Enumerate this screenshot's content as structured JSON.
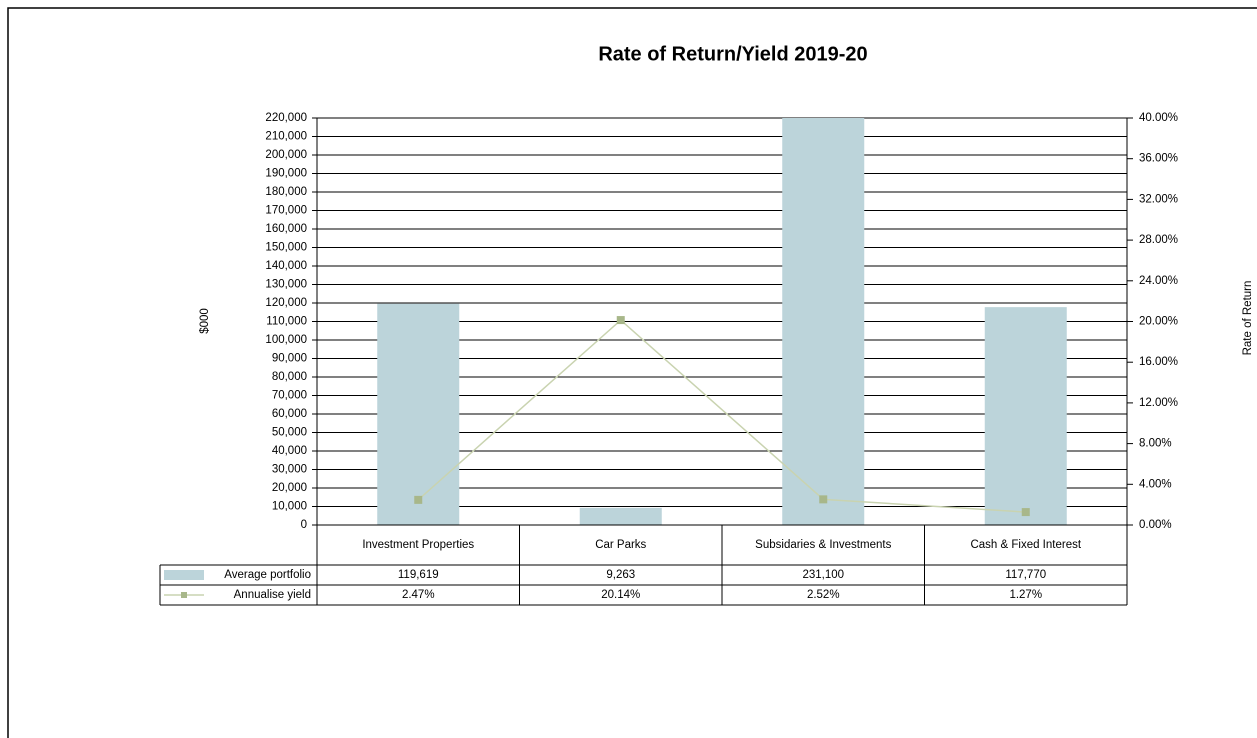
{
  "chart_data": {
    "type": "bar",
    "title": "Rate of Return/Yield 2019-20",
    "y_label": "$000",
    "y2_label": "Rate of Return",
    "categories": [
      "Investment Properties",
      "Car Parks",
      "Subsidaries & Investments",
      "Cash & Fixed Interest"
    ],
    "series": [
      {
        "name": "Average portfolio",
        "type": "bar",
        "color": "#bcd4da",
        "values": [
          119619,
          9263,
          231100,
          117770
        ],
        "value_labels": [
          "119,619",
          "9,263",
          "231,100",
          "117,770"
        ]
      },
      {
        "name": "Annualise yield",
        "type": "line",
        "axis": "y2",
        "color": "#c9d3b0",
        "marker_color": "#a8b78a",
        "values": [
          2.47,
          20.14,
          2.52,
          1.27
        ],
        "value_labels": [
          "2.47%",
          "20.14%",
          "2.52%",
          "1.27%"
        ]
      }
    ],
    "ylim": [
      0,
      220000
    ],
    "yticks": [
      0,
      {
        "value": 10000,
        "label": "10,000"
      },
      {
        "value": 20000,
        "label": "20,000"
      },
      {
        "value": 30000,
        "label": "30,000"
      },
      {
        "value": 40000,
        "label": "40,000"
      },
      {
        "value": 50000,
        "label": "50,000"
      },
      {
        "value": 60000,
        "label": "60,000"
      },
      {
        "value": 70000,
        "label": "70,000"
      },
      {
        "value": 80000,
        "label": "80,000"
      },
      {
        "value": 90000,
        "label": "90,000"
      },
      {
        "value": 100000,
        "label": "100,000"
      },
      {
        "value": 110000,
        "label": "110,000"
      },
      {
        "value": 120000,
        "label": "120,000"
      },
      {
        "value": 130000,
        "label": "130,000"
      },
      {
        "value": 140000,
        "label": "140,000"
      },
      {
        "value": 150000,
        "label": "150,000"
      },
      {
        "value": 160000,
        "label": "160,000"
      },
      {
        "value": 170000,
        "label": "170,000"
      },
      {
        "value": 180000,
        "label": "180,000"
      },
      {
        "value": 190000,
        "label": "190,000"
      },
      {
        "value": 200000,
        "label": "200,000"
      },
      {
        "value": 210000,
        "label": "210,000"
      },
      {
        "value": 220000,
        "label": "220,000"
      }
    ],
    "y2lim": [
      0,
      40
    ],
    "y2ticks": [
      {
        "value": 0,
        "label": "0.00%"
      },
      {
        "value": 4,
        "label": "4.00%"
      },
      {
        "value": 8,
        "label": "8.00%"
      },
      {
        "value": 12,
        "label": "12.00%"
      },
      {
        "value": 16,
        "label": "16.00%"
      },
      {
        "value": 20,
        "label": "20.00%"
      },
      {
        "value": 24,
        "label": "24.00%"
      },
      {
        "value": 28,
        "label": "28.00%"
      },
      {
        "value": 32,
        "label": "32.00%"
      },
      {
        "value": 36,
        "label": "36.00%"
      },
      {
        "value": 40,
        "label": "40.00%"
      }
    ],
    "grid": true,
    "data_table": true
  }
}
